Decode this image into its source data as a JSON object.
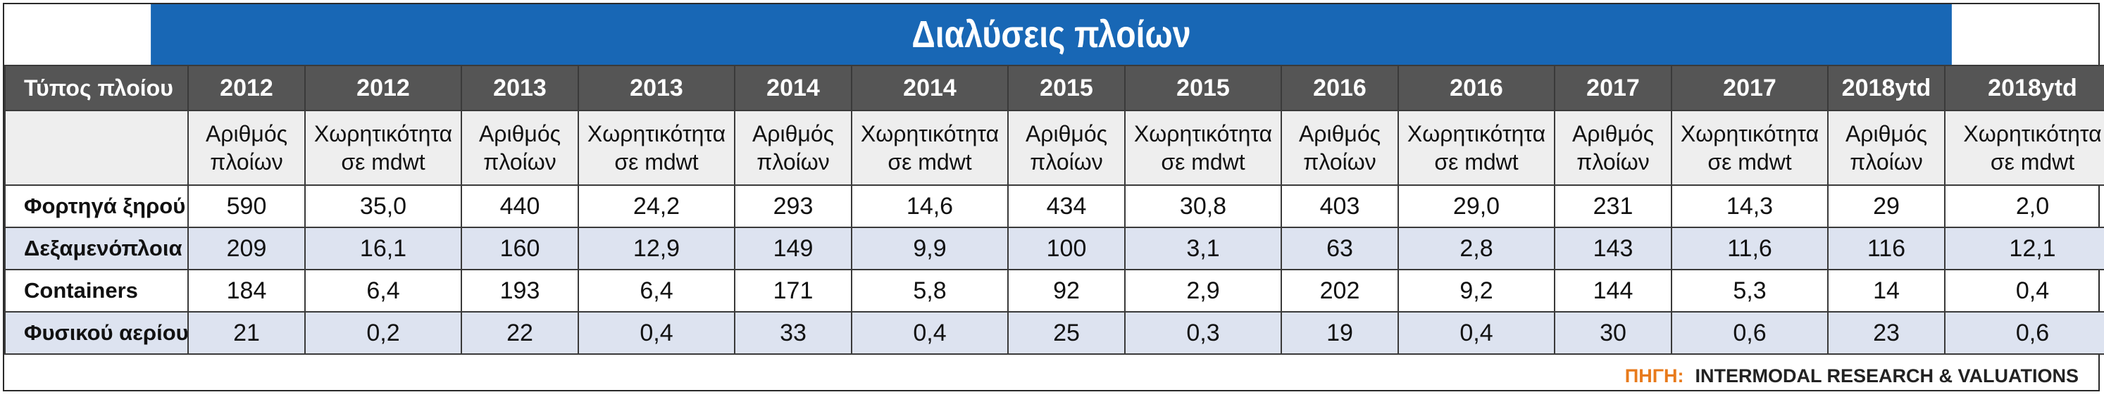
{
  "title": "Διαλύσεις πλοίων",
  "header": {
    "first_col": "Τύπος πλοίου",
    "years": [
      "2012",
      "2012",
      "2013",
      "2013",
      "2014",
      "2014",
      "2015",
      "2015",
      "2016",
      "2016",
      "2017",
      "2017",
      "2018ytd",
      "2018ytd"
    ]
  },
  "subheader": {
    "count_label_line1": "Αριθμός",
    "count_label_line2": "πλοίων",
    "capacity_label_line1": "Χωρητικότητα",
    "capacity_label_line2": "σε mdwt"
  },
  "rows": [
    {
      "label": "Φορτηγά ξηρού",
      "values": [
        "590",
        "35,0",
        "440",
        "24,2",
        "293",
        "14,6",
        "434",
        "30,8",
        "403",
        "29,0",
        "231",
        "14,3",
        "29",
        "2,0"
      ]
    },
    {
      "label": "Δεξαμενόπλοια",
      "values": [
        "209",
        "16,1",
        "160",
        "12,9",
        "149",
        "9,9",
        "100",
        "3,1",
        "63",
        "2,8",
        "143",
        "11,6",
        "116",
        "12,1"
      ]
    },
    {
      "label": "Containers",
      "values": [
        "184",
        "6,4",
        "193",
        "6,4",
        "171",
        "5,8",
        "92",
        "2,9",
        "202",
        "9,2",
        "144",
        "5,3",
        "14",
        "0,4"
      ]
    },
    {
      "label": "Φυσικού αερίου",
      "values": [
        "21",
        "0,2",
        "22",
        "0,4",
        "33",
        "0,4",
        "25",
        "0,3",
        "19",
        "0,4",
        "30",
        "0,6",
        "23",
        "0,6"
      ]
    }
  ],
  "source": {
    "label": "ΠΗΓΗ:",
    "text": "INTERMODAL RESEARCH & VALUATIONS"
  },
  "colors": {
    "title_bg": "#1867b5",
    "header_bg": "#555555",
    "alt_row_bg": "#dde3f0",
    "source_label": "#e87a1b"
  }
}
